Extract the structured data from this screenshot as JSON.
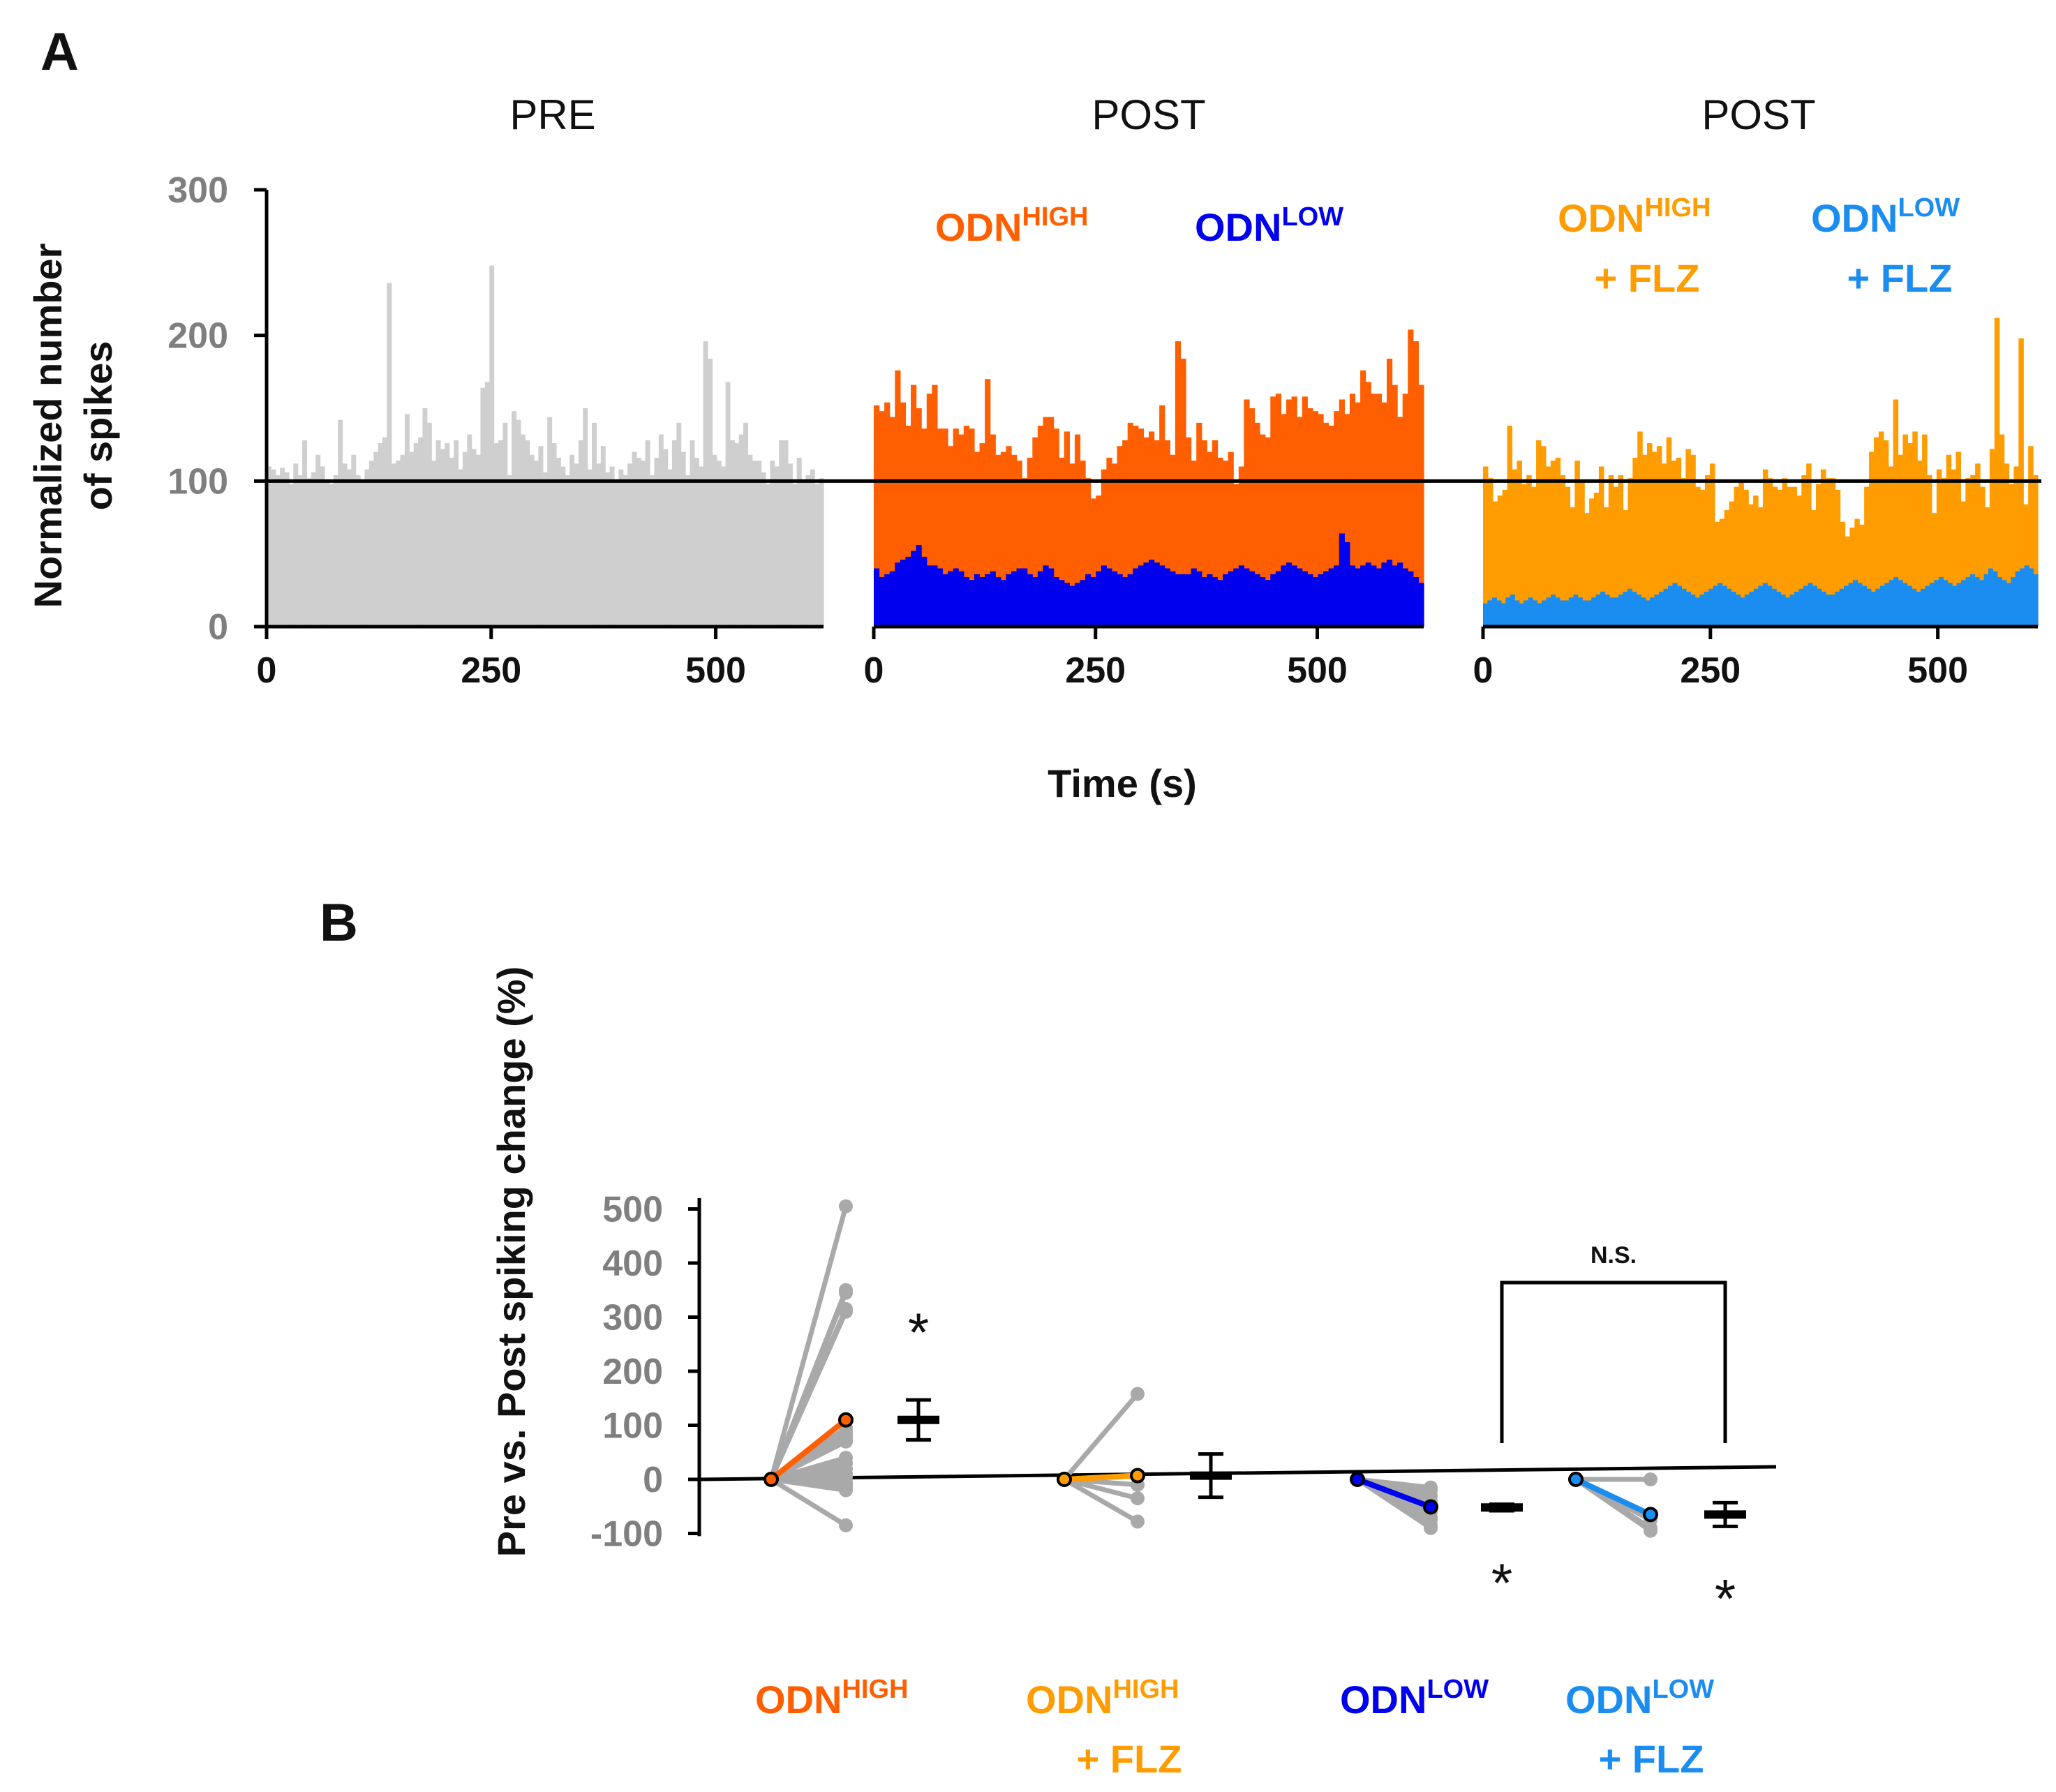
{
  "colors": {
    "pre": "#cfcfcf",
    "odn_high": "#ff5f00",
    "odn_low": "#0000ee",
    "odn_high_flz": "#ff9c00",
    "odn_low_flz": "#1b8cf0",
    "gray_lines": "#a9a9a9",
    "axis": "#000000",
    "ytick": "#7f7f7f"
  },
  "panel_a": {
    "letter": "A",
    "titles": [
      "PRE",
      "POST",
      "POST"
    ],
    "ylabel_line1": "Normalized number",
    "ylabel_line2": "of spikes",
    "xlabel": "Time (s)",
    "legend": {
      "high_base": "ODN",
      "high_sup": "HIGH",
      "low_base": "ODN",
      "low_sup": "LOW",
      "flz_high_base": "ODN",
      "flz_high_sup": "HIGH",
      "flz_high_line2": "+ FLZ",
      "flz_low_base": "ODN",
      "flz_low_sup": "LOW",
      "flz_low_line2": "+ FLZ"
    }
  },
  "panel_b": {
    "letter": "B",
    "ylabel": "Pre vs. Post spiking change (%)",
    "ns_label": "N.S.",
    "star": "*",
    "group_labels": [
      {
        "base": "ODN",
        "sup": "HIGH",
        "line2": ""
      },
      {
        "base": "ODN",
        "sup": "HIGH",
        "line2": "+ FLZ"
      },
      {
        "base": "ODN",
        "sup": "LOW",
        "line2": ""
      },
      {
        "base": "ODN",
        "sup": "LOW",
        "line2": "+ FLZ"
      }
    ]
  },
  "chart_data": [
    {
      "type": "bar",
      "title": "PRE",
      "xlabel": "Time (s)",
      "ylabel": "Normalized number of spikes",
      "ylim": [
        0,
        300
      ],
      "xlim": [
        0,
        620
      ],
      "bin_width": 5,
      "yticks": [
        0,
        100,
        200,
        300
      ],
      "xticks": [
        0,
        250,
        500
      ],
      "reference_line": 100,
      "series": [
        {
          "name": "PRE",
          "color_key": "pre",
          "values": [
            110,
            108,
            104,
            109,
            106,
            98,
            112,
            104,
            128,
            102,
            106,
            118,
            110,
            100,
            98,
            104,
            142,
            112,
            108,
            118,
            104,
            100,
            108,
            114,
            120,
            126,
            130,
            236,
            112,
            114,
            118,
            146,
            120,
            126,
            130,
            150,
            140,
            114,
            128,
            122,
            126,
            116,
            128,
            108,
            120,
            132,
            122,
            118,
            164,
            168,
            248,
            126,
            128,
            140,
            104,
            148,
            142,
            132,
            128,
            118,
            114,
            124,
            106,
            144,
            126,
            116,
            110,
            104,
            118,
            112,
            128,
            150,
            108,
            140,
            112,
            124,
            106,
            110,
            100,
            108,
            104,
            112,
            120,
            116,
            114,
            128,
            104,
            116,
            132,
            122,
            108,
            128,
            140,
            120,
            104,
            128,
            116,
            110,
            196,
            184,
            118,
            114,
            110,
            168,
            128,
            126,
            132,
            140,
            118,
            114,
            114,
            106,
            98,
            114,
            110,
            128,
            128,
            112,
            98,
            116,
            100,
            104,
            108,
            98,
            102
          ]
        }
      ]
    },
    {
      "type": "bar",
      "title": "POST",
      "xlabel": "Time (s)",
      "ylim": [
        0,
        300
      ],
      "xlim": [
        0,
        620
      ],
      "bin_width": 5,
      "xticks": [
        0,
        250,
        500
      ],
      "reference_line": 100,
      "series": [
        {
          "name": "ODN HIGH",
          "color_key": "odn_high",
          "values": [
            152,
            148,
            154,
            144,
            176,
            154,
            138,
            166,
            150,
            136,
            160,
            166,
            136,
            136,
            124,
            136,
            132,
            138,
            136,
            120,
            126,
            170,
            132,
            118,
            120,
            124,
            118,
            114,
            102,
            116,
            130,
            138,
            144,
            144,
            136,
            116,
            134,
            112,
            132,
            114,
            102,
            88,
            90,
            108,
            116,
            112,
            124,
            128,
            140,
            138,
            136,
            130,
            134,
            128,
            152,
            128,
            118,
            196,
            184,
            130,
            114,
            140,
            128,
            120,
            128,
            116,
            114,
            120,
            98,
            110,
            156,
            150,
            140,
            132,
            130,
            158,
            160,
            146,
            156,
            158,
            144,
            158,
            150,
            148,
            146,
            140,
            138,
            148,
            156,
            146,
            160,
            154,
            176,
            168,
            160,
            160,
            154,
            184,
            166,
            144,
            160,
            204,
            196,
            166
          ]
        },
        {
          "name": "ODN LOW",
          "color_key": "odn_low",
          "values": [
            40,
            34,
            36,
            38,
            44,
            46,
            48,
            52,
            56,
            48,
            42,
            42,
            40,
            36,
            38,
            40,
            38,
            34,
            32,
            36,
            34,
            36,
            38,
            34,
            32,
            36,
            38,
            40,
            40,
            36,
            34,
            38,
            42,
            40,
            34,
            32,
            30,
            28,
            30,
            32,
            36,
            34,
            38,
            42,
            40,
            38,
            36,
            34,
            36,
            40,
            42,
            44,
            46,
            44,
            42,
            40,
            38,
            36,
            36,
            36,
            40,
            38,
            34,
            36,
            34,
            32,
            36,
            38,
            40,
            42,
            40,
            38,
            36,
            34,
            32,
            36,
            38,
            42,
            44,
            42,
            40,
            38,
            36,
            34,
            36,
            38,
            40,
            42,
            64,
            58,
            42,
            40,
            42,
            44,
            42,
            40,
            44,
            46,
            42,
            44,
            40,
            38,
            34,
            30
          ]
        }
      ]
    },
    {
      "type": "bar",
      "title": "POST",
      "xlabel": "Time (s)",
      "ylim": [
        0,
        300
      ],
      "xlim": [
        0,
        610
      ],
      "bin_width": 5,
      "xticks": [
        0,
        250,
        500
      ],
      "reference_line": 100,
      "series": [
        {
          "name": "ODN HIGH + FLZ",
          "color_key": "odn_high_flz",
          "values": [
            110,
            102,
            86,
            90,
            94,
            138,
            108,
            114,
            98,
            104,
            96,
            128,
            124,
            110,
            114,
            116,
            104,
            96,
            82,
            114,
            100,
            78,
            88,
            92,
            110,
            82,
            104,
            96,
            104,
            80,
            102,
            116,
            134,
            118,
            126,
            120,
            124,
            112,
            130,
            114,
            116,
            102,
            122,
            118,
            96,
            94,
            104,
            112,
            72,
            74,
            80,
            86,
            96,
            100,
            94,
            84,
            90,
            82,
            108,
            102,
            96,
            94,
            102,
            96,
            96,
            90,
            104,
            112,
            80,
            98,
            108,
            102,
            102,
            94,
            72,
            62,
            68,
            74,
            70,
            96,
            120,
            130,
            134,
            128,
            110,
            156,
            118,
            132,
            126,
            134,
            114,
            132,
            104,
            78,
            108,
            102,
            118,
            108,
            120,
            86,
            102,
            104,
            112,
            96,
            82,
            122,
            212,
            132,
            112,
            98,
            110,
            198,
            84,
            124,
            104
          ]
        },
        {
          "name": "ODN LOW + FLZ",
          "color_key": "odn_low_flz",
          "values": [
            16,
            18,
            20,
            18,
            16,
            20,
            22,
            18,
            16,
            18,
            20,
            18,
            16,
            18,
            20,
            22,
            20,
            18,
            18,
            20,
            22,
            20,
            18,
            18,
            20,
            22,
            24,
            22,
            20,
            20,
            22,
            24,
            26,
            24,
            22,
            20,
            18,
            20,
            22,
            24,
            26,
            28,
            30,
            28,
            26,
            24,
            22,
            20,
            22,
            24,
            26,
            28,
            30,
            28,
            26,
            24,
            22,
            20,
            22,
            24,
            26,
            28,
            30,
            28,
            26,
            24,
            22,
            20,
            22,
            24,
            26,
            28,
            30,
            28,
            26,
            24,
            22,
            22,
            24,
            26,
            28,
            30,
            32,
            30,
            28,
            26,
            24,
            26,
            28,
            30,
            32,
            34,
            32,
            30,
            28,
            26,
            24,
            26,
            28,
            30,
            32,
            34,
            32,
            30,
            28,
            30,
            32,
            34,
            36,
            34,
            32,
            36,
            40,
            38,
            34,
            32,
            30,
            34,
            38,
            40,
            42,
            40,
            36
          ]
        }
      ]
    },
    {
      "type": "scatter",
      "title": "",
      "ylabel": "Pre vs. Post spiking change (%)",
      "ylim": [
        -100,
        500
      ],
      "yticks": [
        -100,
        0,
        100,
        200,
        300,
        400,
        500
      ],
      "ref_zero": 0,
      "groups": [
        {
          "name": "ODN HIGH",
          "color_key": "odn_high",
          "individual_post": [
            505,
            350,
            345,
            315,
            310,
            95,
            90,
            85,
            80,
            75,
            70,
            40,
            30,
            20,
            10,
            5,
            -5,
            -10,
            -15,
            -20,
            -85
          ],
          "example_post": 110,
          "mean": 110,
          "sem": 37,
          "significant": true,
          "star_position": "above"
        },
        {
          "name": "ODN HIGH + FLZ",
          "color_key": "odn_high_flz",
          "individual_post": [
            158,
            8,
            -10,
            -35,
            -78
          ],
          "example_post": 7,
          "mean": 7,
          "sem": 40,
          "significant": false
        },
        {
          "name": "ODN LOW",
          "color_key": "odn_low",
          "individual_post": [
            -15,
            -20,
            -30,
            -40,
            -50,
            -60,
            -70,
            -75,
            -85,
            -90
          ],
          "example_post": -51,
          "mean": -52,
          "sem": 6,
          "significant": true,
          "star_position": "below"
        },
        {
          "name": "ODN LOW + FLZ",
          "color_key": "odn_low_flz",
          "individual_post": [
            0,
            -65,
            -75,
            -90,
            -95
          ],
          "example_post": -65,
          "mean": -65,
          "sem": 22,
          "significant": true,
          "star_position": "below"
        }
      ],
      "comparison": {
        "groups": [
          "ODN LOW",
          "ODN LOW + FLZ"
        ],
        "label": "N.S."
      }
    }
  ]
}
